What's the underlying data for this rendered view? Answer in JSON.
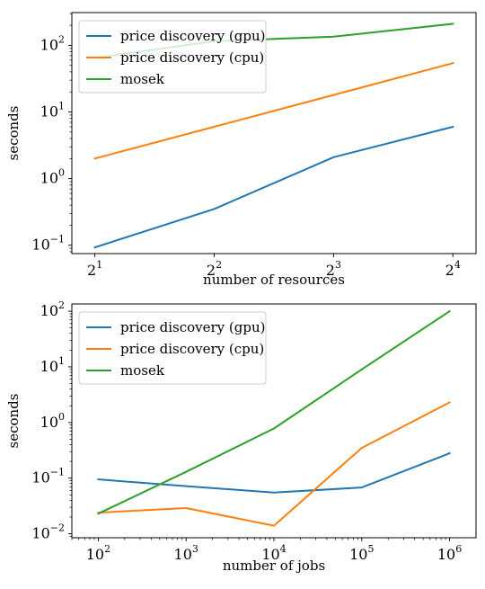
{
  "chart_data": [
    {
      "type": "line",
      "xscale": "log2",
      "yscale": "log10",
      "xlabel": "number of resources",
      "ylabel": "seconds",
      "x": [
        2,
        4,
        8,
        16
      ],
      "xticks": [
        {
          "base": "2",
          "exp": "1",
          "value": 2
        },
        {
          "base": "2",
          "exp": "2",
          "value": 4
        },
        {
          "base": "2",
          "exp": "3",
          "value": 8
        },
        {
          "base": "2",
          "exp": "4",
          "value": 16
        }
      ],
      "yticks": [
        {
          "base": "10",
          "exp": "−1",
          "value": 0.1
        },
        {
          "base": "10",
          "exp": "0",
          "value": 1
        },
        {
          "base": "10",
          "exp": "1",
          "value": 10
        },
        {
          "base": "10",
          "exp": "2",
          "value": 100
        }
      ],
      "xlim": [
        1.75,
        18.3
      ],
      "ylim": [
        0.075,
        310
      ],
      "grid": false,
      "legend_position": "top-left",
      "series": [
        {
          "name": "price discovery (gpu)",
          "color": "#1f77b4",
          "values": [
            0.093,
            0.35,
            2.1,
            6.0
          ]
        },
        {
          "name": "price discovery (cpu)",
          "color": "#ff7f0e",
          "values": [
            2.0,
            6.0,
            18.0,
            54.0
          ]
        },
        {
          "name": "mosek",
          "color": "#2ca02c",
          "values": [
            65.0,
            115.0,
            135.0,
            210.0
          ]
        }
      ]
    },
    {
      "type": "line",
      "xscale": "log10",
      "yscale": "log10",
      "xlabel": "number of jobs",
      "ylabel": "seconds",
      "x": [
        100,
        1000,
        10000,
        100000,
        1000000
      ],
      "xticks": [
        {
          "base": "10",
          "exp": "2",
          "value": 100
        },
        {
          "base": "10",
          "exp": "3",
          "value": 1000
        },
        {
          "base": "10",
          "exp": "4",
          "value": 10000
        },
        {
          "base": "10",
          "exp": "5",
          "value": 100000
        },
        {
          "base": "10",
          "exp": "6",
          "value": 1000000
        }
      ],
      "yticks": [
        {
          "base": "10",
          "exp": "−2",
          "value": 0.01
        },
        {
          "base": "10",
          "exp": "−1",
          "value": 0.1
        },
        {
          "base": "10",
          "exp": "0",
          "value": 1
        },
        {
          "base": "10",
          "exp": "1",
          "value": 10
        },
        {
          "base": "10",
          "exp": "2",
          "value": 100
        }
      ],
      "xlim": [
        50,
        2000000
      ],
      "ylim": [
        0.0085,
        135
      ],
      "grid": false,
      "legend_position": "top-left",
      "series": [
        {
          "name": "price discovery (gpu)",
          "color": "#1f77b4",
          "values": [
            0.095,
            0.072,
            0.055,
            0.068,
            0.28
          ]
        },
        {
          "name": "price discovery (cpu)",
          "color": "#ff7f0e",
          "values": [
            0.024,
            0.029,
            0.014,
            0.35,
            2.3
          ]
        },
        {
          "name": "mosek",
          "color": "#2ca02c",
          "values": [
            0.023,
            0.13,
            0.78,
            9.0,
            100.0
          ]
        }
      ]
    }
  ]
}
